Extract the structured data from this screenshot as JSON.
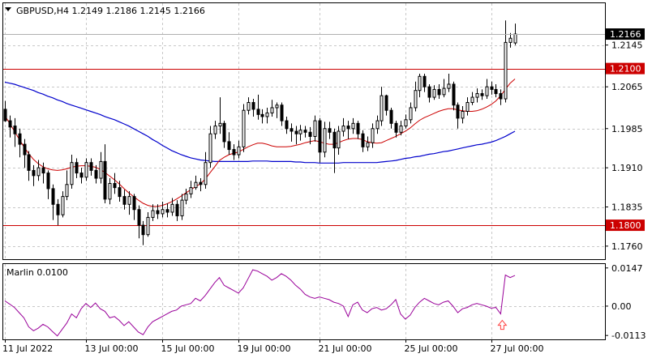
{
  "header": {
    "symbol_line": "GBPUSD,H4  1.2149  1.2186  1.2145  1.2166"
  },
  "chart_data": [
    {
      "type": "candlestick",
      "symbol": "GBPUSD",
      "timeframe": "H4",
      "ohlc_last": {
        "open": 1.2149,
        "high": 1.2186,
        "low": 1.2145,
        "close": 1.2166
      },
      "ylim": [
        1.1735,
        1.2225
      ],
      "y_ticks": [
        "1.2145",
        "1.2065",
        "1.1985",
        "1.1910",
        "1.1835",
        "1.1760"
      ],
      "current_price_label": "1.2166",
      "levels": [
        {
          "price": 1.21,
          "label": "1.2100",
          "color": "#cc0000"
        },
        {
          "price": 1.18,
          "label": "1.1800",
          "color": "#cc0000"
        }
      ],
      "x_ticks": [
        "11 Jul 2022",
        "13 Jul 00:00",
        "15 Jul 00:00",
        "19 Jul 00:00",
        "21 Jul 00:00",
        "25 Jul 00:00",
        "27 Jul 00:00"
      ],
      "candles": [
        [
          1.2022,
          1.2,
          1.2038,
          1.1998
        ],
        [
          1.2,
          1.1988,
          1.201,
          1.1968
        ],
        [
          1.199,
          1.1975,
          1.2005,
          1.195
        ],
        [
          1.1975,
          1.1955,
          1.1985,
          1.193
        ],
        [
          1.1955,
          1.1935,
          1.1965,
          1.191
        ],
        [
          1.1935,
          1.1905,
          1.1942,
          1.1885
        ],
        [
          1.1905,
          1.1895,
          1.1915,
          1.1875
        ],
        [
          1.1895,
          1.191,
          1.1925,
          1.1885
        ],
        [
          1.191,
          1.19,
          1.192,
          1.188
        ],
        [
          1.19,
          1.187,
          1.1905,
          1.185
        ],
        [
          1.187,
          1.184,
          1.1878,
          1.181
        ],
        [
          1.184,
          1.182,
          1.185,
          1.18
        ],
        [
          1.182,
          1.1855,
          1.1865,
          1.1815
        ],
        [
          1.1855,
          1.1878,
          1.1905,
          1.1848
        ],
        [
          1.1878,
          1.192,
          1.1935,
          1.187
        ],
        [
          1.192,
          1.19,
          1.1928,
          1.189
        ],
        [
          1.19,
          1.1892,
          1.191,
          1.188
        ],
        [
          1.1892,
          1.192,
          1.1928,
          1.1885
        ],
        [
          1.192,
          1.1905,
          1.1928,
          1.1895
        ],
        [
          1.1905,
          1.189,
          1.1915,
          1.188
        ],
        [
          1.189,
          1.1922,
          1.194,
          1.188
        ],
        [
          1.1922,
          1.185,
          1.1955,
          1.1842
        ],
        [
          1.185,
          1.188,
          1.189,
          1.184
        ],
        [
          1.188,
          1.1872,
          1.19,
          1.186
        ],
        [
          1.1872,
          1.1855,
          1.1885,
          1.1845
        ],
        [
          1.1855,
          1.184,
          1.1868,
          1.183
        ],
        [
          1.184,
          1.1855,
          1.1865,
          1.182
        ],
        [
          1.1855,
          1.183,
          1.186,
          1.181
        ],
        [
          1.183,
          1.18,
          1.1838,
          1.1775
        ],
        [
          1.18,
          1.1782,
          1.1808,
          1.1762
        ],
        [
          1.1782,
          1.1815,
          1.1825,
          1.1778
        ],
        [
          1.1815,
          1.1828,
          1.184,
          1.1808
        ],
        [
          1.1828,
          1.1822,
          1.184,
          1.1812
        ],
        [
          1.1822,
          1.183,
          1.1845,
          1.1815
        ],
        [
          1.183,
          1.1825,
          1.1842,
          1.1815
        ],
        [
          1.1825,
          1.184,
          1.1852,
          1.1818
        ],
        [
          1.184,
          1.1818,
          1.1848,
          1.1808
        ],
        [
          1.1818,
          1.1848,
          1.186,
          1.181
        ],
        [
          1.1848,
          1.186,
          1.187,
          1.184
        ],
        [
          1.186,
          1.1872,
          1.1885,
          1.1852
        ],
        [
          1.1872,
          1.1882,
          1.1895,
          1.1868
        ],
        [
          1.1882,
          1.1878,
          1.189,
          1.1865
        ],
        [
          1.1878,
          1.192,
          1.194,
          1.187
        ],
        [
          1.192,
          1.1975,
          1.199,
          1.191
        ],
        [
          1.1975,
          1.199,
          1.2,
          1.1965
        ],
        [
          1.199,
          1.1995,
          1.2045,
          1.1975
        ],
        [
          1.1995,
          1.196,
          1.2,
          1.1948
        ],
        [
          1.196,
          1.1945,
          1.1978,
          1.1935
        ],
        [
          1.1945,
          1.1935,
          1.1955,
          1.1925
        ],
        [
          1.1935,
          1.195,
          1.1962,
          1.1928
        ],
        [
          1.195,
          1.202,
          1.2032,
          1.194
        ],
        [
          1.202,
          1.2035,
          1.2045,
          1.2012
        ],
        [
          1.2035,
          1.2022,
          1.2042,
          1.2008
        ],
        [
          1.2022,
          1.2012,
          1.205,
          1.2002
        ],
        [
          1.2012,
          1.2008,
          1.2022,
          1.1995
        ],
        [
          1.2008,
          1.2015,
          1.2025,
          1.1995
        ],
        [
          1.2015,
          1.2025,
          1.204,
          1.2008
        ],
        [
          1.2025,
          1.203,
          1.2035,
          1.2005
        ],
        [
          1.203,
          1.2,
          1.2035,
          1.199
        ],
        [
          1.2,
          1.1985,
          1.2008,
          1.1975
        ],
        [
          1.1985,
          1.198,
          1.1995,
          1.196
        ],
        [
          1.198,
          1.1975,
          1.199,
          1.1955
        ],
        [
          1.1975,
          1.1982,
          1.1992,
          1.1962
        ],
        [
          1.1982,
          1.1978,
          1.199,
          1.1968
        ],
        [
          1.1978,
          1.197,
          1.1988,
          1.1955
        ],
        [
          1.197,
          1.2,
          1.201,
          1.196
        ],
        [
          1.2,
          1.194,
          1.2005,
          1.192
        ],
        [
          1.194,
          1.1985,
          1.1998,
          1.193
        ],
        [
          1.1985,
          1.1978,
          1.1998,
          1.1965
        ],
        [
          1.1978,
          1.1948,
          1.1985,
          1.19
        ],
        [
          1.1948,
          1.198,
          1.199,
          1.1935
        ],
        [
          1.198,
          1.199,
          1.2005,
          1.197
        ],
        [
          1.199,
          1.1985,
          1.2,
          1.1965
        ],
        [
          1.1985,
          1.1995,
          1.2005,
          1.1975
        ],
        [
          1.1995,
          1.1975,
          1.2,
          1.1965
        ],
        [
          1.1975,
          1.195,
          1.1982,
          1.194
        ],
        [
          1.195,
          1.1958,
          1.197,
          1.1942
        ],
        [
          1.1958,
          1.1985,
          1.1995,
          1.1948
        ],
        [
          1.1985,
          1.2,
          1.201,
          1.1975
        ],
        [
          1.2,
          1.2048,
          1.2065,
          1.199
        ],
        [
          1.2048,
          1.202,
          1.205,
          1.201
        ],
        [
          1.202,
          1.1995,
          1.2025,
          1.1985
        ],
        [
          1.1995,
          1.1978,
          1.2,
          1.1968
        ],
        [
          1.1978,
          1.199,
          1.2,
          1.1972
        ],
        [
          1.199,
          1.2002,
          1.2012,
          1.1985
        ],
        [
          1.2002,
          1.2025,
          1.2035,
          1.1995
        ],
        [
          1.2025,
          1.2058,
          1.2075,
          1.2018
        ],
        [
          1.2058,
          1.2085,
          1.209,
          1.2045
        ],
        [
          1.2085,
          1.2065,
          1.209,
          1.2055
        ],
        [
          1.2065,
          1.2045,
          1.207,
          1.2035
        ],
        [
          1.2045,
          1.206,
          1.2068,
          1.204
        ],
        [
          1.206,
          1.205,
          1.207,
          1.2042
        ],
        [
          1.205,
          1.2062,
          1.208,
          1.2045
        ],
        [
          1.2062,
          1.207,
          1.209,
          1.2055
        ],
        [
          1.207,
          1.203,
          1.2075,
          1.202
        ],
        [
          1.203,
          1.2005,
          1.2035,
          1.1985
        ],
        [
          1.2005,
          1.2018,
          1.2028,
          1.1995
        ],
        [
          1.2018,
          1.2035,
          1.2045,
          1.201
        ],
        [
          1.2035,
          1.2045,
          1.2055,
          1.203
        ],
        [
          1.2045,
          1.2052,
          1.2062,
          1.2035
        ],
        [
          1.2052,
          1.2048,
          1.206,
          1.204
        ],
        [
          1.2048,
          1.2065,
          1.208,
          1.2042
        ],
        [
          1.2065,
          1.206,
          1.2075,
          1.205
        ],
        [
          1.206,
          1.2052,
          1.207,
          1.2045
        ],
        [
          1.2052,
          1.2042,
          1.206,
          1.203
        ],
        [
          1.2042,
          1.215,
          1.2192,
          1.2035
        ],
        [
          1.215,
          1.2158,
          1.2168,
          1.214
        ],
        [
          1.2149,
          1.2166,
          1.2186,
          1.2145
        ]
      ],
      "fast_ma": [
        1.201,
        1.1995,
        1.198,
        1.1965,
        1.195,
        1.1937,
        1.1926,
        1.1918,
        1.1912,
        1.1908,
        1.1906,
        1.1905,
        1.1906,
        1.1908,
        1.1911,
        1.1913,
        1.1914,
        1.1914,
        1.1913,
        1.1911,
        1.1907,
        1.1901,
        1.1894,
        1.1887,
        1.1879,
        1.187,
        1.1862,
        1.1855,
        1.1848,
        1.1842,
        1.1838,
        1.1836,
        1.1836,
        1.1838,
        1.1841,
        1.1845,
        1.185,
        1.1856,
        1.1862,
        1.1868,
        1.1874,
        1.1879,
        1.1888,
        1.19,
        1.1912,
        1.1924,
        1.193,
        1.1935,
        1.1938,
        1.194,
        1.1945,
        1.195,
        1.1954,
        1.1957,
        1.1957,
        1.1955,
        1.1952,
        1.195,
        1.195,
        1.195,
        1.1951,
        1.1953,
        1.1955,
        1.1958,
        1.196,
        1.1962,
        1.196,
        1.1957,
        1.1955,
        1.1955,
        1.1958,
        1.1962,
        1.1965,
        1.1966,
        1.1966,
        1.1964,
        1.196,
        1.1958,
        1.1957,
        1.1958,
        1.1962,
        1.1966,
        1.197,
        1.1975,
        1.198,
        1.1986,
        1.1994,
        1.2001,
        1.2006,
        1.201,
        1.2014,
        1.2018,
        1.2021,
        1.2023,
        1.2023,
        1.2021,
        1.2019,
        1.2018,
        1.2018,
        1.2019,
        1.2022,
        1.2026,
        1.2031,
        1.2038,
        1.2048,
        1.206,
        1.2072,
        1.208
      ],
      "slow_ma": [
        1.2074,
        1.2072,
        1.207,
        1.2067,
        1.2064,
        1.2061,
        1.2058,
        1.2054,
        1.2051,
        1.2047,
        1.2044,
        1.204,
        1.2037,
        1.2033,
        1.203,
        1.2027,
        1.2024,
        1.2021,
        1.2018,
        1.2015,
        1.2012,
        1.2008,
        1.2005,
        1.2002,
        1.1998,
        1.1994,
        1.199,
        1.1985,
        1.198,
        1.1975,
        1.197,
        1.1964,
        1.1959,
        1.1953,
        1.1948,
        1.1943,
        1.1939,
        1.1935,
        1.1932,
        1.1929,
        1.1927,
        1.1925,
        1.1924,
        1.1923,
        1.1922,
        1.1922,
        1.1922,
        1.1922,
        1.1922,
        1.1922,
        1.1922,
        1.1922,
        1.1923,
        1.1923,
        1.1923,
        1.1923,
        1.1922,
        1.1922,
        1.1922,
        1.1922,
        1.1922,
        1.1921,
        1.1921,
        1.192,
        1.192,
        1.192,
        1.1919,
        1.1919,
        1.1919,
        1.1919,
        1.1919,
        1.192,
        1.192,
        1.192,
        1.192,
        1.192,
        1.192,
        1.192,
        1.192,
        1.1921,
        1.1922,
        1.1923,
        1.1924,
        1.1926,
        1.1928,
        1.1929,
        1.1931,
        1.1932,
        1.1934,
        1.1936,
        1.1937,
        1.1939,
        1.1941,
        1.1942,
        1.1944,
        1.1946,
        1.1948,
        1.195,
        1.1952,
        1.1954,
        1.1955,
        1.1957,
        1.1959,
        1.1962,
        1.1966,
        1.197,
        1.1975,
        1.198
      ],
      "colors": {
        "bull": "#ffffff",
        "bear": "#000000",
        "wick": "#000000",
        "fast_ma": "#cc0000",
        "slow_ma": "#0000cc",
        "grid": "#c8c8c8"
      }
    },
    {
      "type": "line",
      "title": "Marlin 0.0100",
      "ylim": [
        -0.0128,
        0.0162
      ],
      "y_ticks": [
        "0.0147",
        "0.00",
        "-0.0113"
      ],
      "values": [
        0.002,
        0.0008,
        -0.0005,
        -0.0025,
        -0.0045,
        -0.008,
        -0.0095,
        -0.0085,
        -0.007,
        -0.008,
        -0.0098,
        -0.0115,
        -0.009,
        -0.0065,
        -0.003,
        -0.0045,
        -0.001,
        0.001,
        -0.0005,
        0.0012,
        -0.001,
        -0.002,
        -0.0045,
        -0.004,
        -0.0055,
        -0.0075,
        -0.006,
        -0.008,
        -0.01,
        -0.011,
        -0.008,
        -0.006,
        -0.005,
        -0.004,
        -0.003,
        -0.002,
        -0.0015,
        0.0,
        0.0005,
        0.001,
        0.003,
        0.002,
        0.004,
        0.0065,
        0.009,
        0.011,
        0.008,
        0.007,
        0.006,
        0.005,
        0.007,
        0.0105,
        0.014,
        0.0135,
        0.0125,
        0.0115,
        0.01,
        0.011,
        0.0125,
        0.0115,
        0.01,
        0.008,
        0.0065,
        0.0045,
        0.0035,
        0.003,
        0.0035,
        0.003,
        0.0025,
        0.0015,
        0.001,
        0.0,
        -0.004,
        0.0005,
        0.0015,
        -0.0015,
        -0.0025,
        -0.001,
        -0.0005,
        -0.0015,
        -0.001,
        0.0005,
        0.0025,
        -0.003,
        -0.005,
        -0.0035,
        -0.0005,
        0.0015,
        0.003,
        0.002,
        0.001,
        0.0005,
        0.0015,
        0.002,
        0.0,
        -0.0025,
        -0.001,
        -0.0005,
        0.0005,
        0.001,
        0.0005,
        0.0,
        -0.0008,
        -0.0005,
        -0.003,
        0.012,
        0.011,
        0.0118
      ],
      "arrow_index": 104,
      "colors": {
        "line": "#990099",
        "arrow": "#ff4040",
        "zero_line": "#c8c8c8"
      }
    }
  ]
}
